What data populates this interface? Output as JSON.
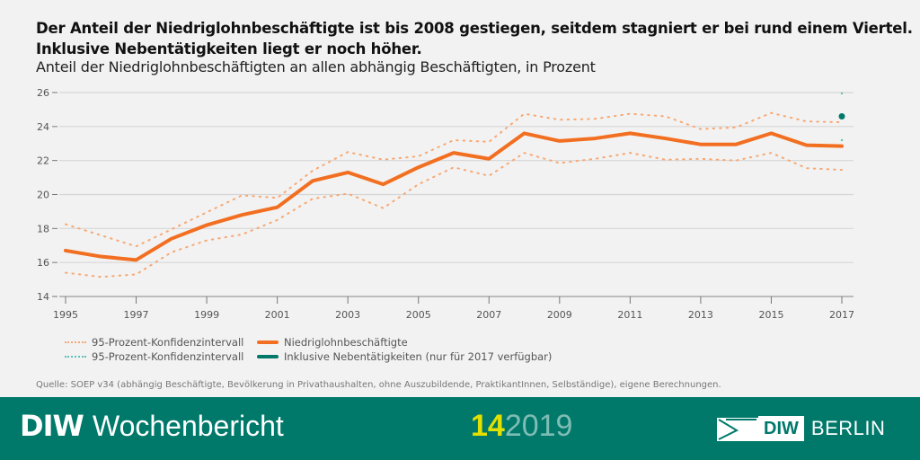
{
  "header": {
    "title_line1": "Der Anteil der Niedriglohnbeschäftigte ist bis 2008 gestiegen, seitdem stagniert er bei rund einem Viertel.",
    "title_line2": "Inklusive Nebentätigkeiten liegt er noch höher.",
    "subtitle": "Anteil der Niedriglohnbeschäftigten an allen abhängig Beschäftigten, in Prozent"
  },
  "legend": {
    "ci_orange": "95-Prozent-Konfidenzintervall",
    "ci_teal": "95-Prozent-Konfidenzintervall",
    "main": "Niedriglohnbeschäftigte",
    "incl": "Inklusive Nebentätigkeiten (nur für 2017 verfügbar)"
  },
  "source": "Quelle: SOEP v34 (abhängig Beschäftigte, Bevölkerung in Privathaushalten, ohne Auszubildende, PraktikantInnen, Selbständige), eigene Berechnungen.",
  "footer": {
    "brand_bold": "DIW",
    "brand_rest": "Wochenbericht",
    "issue_number": "14",
    "issue_year": "2019",
    "logo_box": "DIW",
    "logo_text": "BERLIN"
  },
  "colors": {
    "main": "#f26f21",
    "ci_orange": "#f7a873",
    "teal": "#00796b",
    "ci_teal": "#5fc1b5",
    "footer_bg": "#00796b",
    "issue_number": "#e2e000"
  },
  "chart_data": {
    "type": "line",
    "title": "Der Anteil der Niedriglohnbeschäftigte ist bis 2008 gestiegen, seitdem stagniert er bei rund einem Viertel. Inklusive Nebentätigkeiten liegt er noch höher.",
    "subtitle": "Anteil der Niedriglohnbeschäftigten an allen abhängig Beschäftigten, in Prozent",
    "xlabel": "",
    "ylabel": "",
    "xlim": [
      1995,
      2017
    ],
    "ylim": [
      14,
      26
    ],
    "x_ticks": [
      1995,
      1997,
      1999,
      2001,
      2003,
      2005,
      2007,
      2009,
      2011,
      2013,
      2015,
      2017
    ],
    "y_ticks": [
      14,
      16,
      18,
      20,
      22,
      24,
      26
    ],
    "grid": true,
    "legend_position": "bottom-left",
    "x": [
      1995,
      1996,
      1997,
      1998,
      1999,
      2000,
      2001,
      2002,
      2003,
      2004,
      2005,
      2006,
      2007,
      2008,
      2009,
      2010,
      2011,
      2012,
      2013,
      2014,
      2015,
      2016,
      2017
    ],
    "series": [
      {
        "name": "Niedriglohnbeschäftigte",
        "style": "solid",
        "values": [
          16.7,
          16.35,
          16.15,
          17.4,
          18.2,
          18.8,
          19.25,
          20.8,
          21.3,
          20.6,
          21.6,
          22.45,
          22.1,
          23.6,
          23.15,
          23.3,
          23.6,
          23.3,
          22.95,
          22.95,
          23.6,
          22.9,
          22.85
        ]
      },
      {
        "name": "95-Prozent-Konfidenzintervall (oben)",
        "style": "dotted",
        "values": [
          18.25,
          17.6,
          16.95,
          17.95,
          18.95,
          19.95,
          19.8,
          21.4,
          22.5,
          22.05,
          22.25,
          23.2,
          23.1,
          24.75,
          24.4,
          24.45,
          24.75,
          24.6,
          23.85,
          23.95,
          24.8,
          24.3,
          24.25
        ]
      },
      {
        "name": "95-Prozent-Konfidenzintervall (unten)",
        "style": "dotted",
        "values": [
          15.4,
          15.15,
          15.3,
          16.6,
          17.3,
          17.65,
          18.5,
          19.75,
          20.05,
          19.2,
          20.6,
          21.6,
          21.1,
          22.45,
          21.85,
          22.1,
          22.45,
          22.05,
          22.1,
          22.0,
          22.45,
          21.55,
          21.45
        ]
      },
      {
        "name": "Inklusive Nebentätigkeiten (nur für 2017 verfügbar)",
        "style": "point",
        "x": [
          2017
        ],
        "values": [
          24.6
        ],
        "ci": [
          23.2,
          25.95
        ]
      }
    ]
  }
}
